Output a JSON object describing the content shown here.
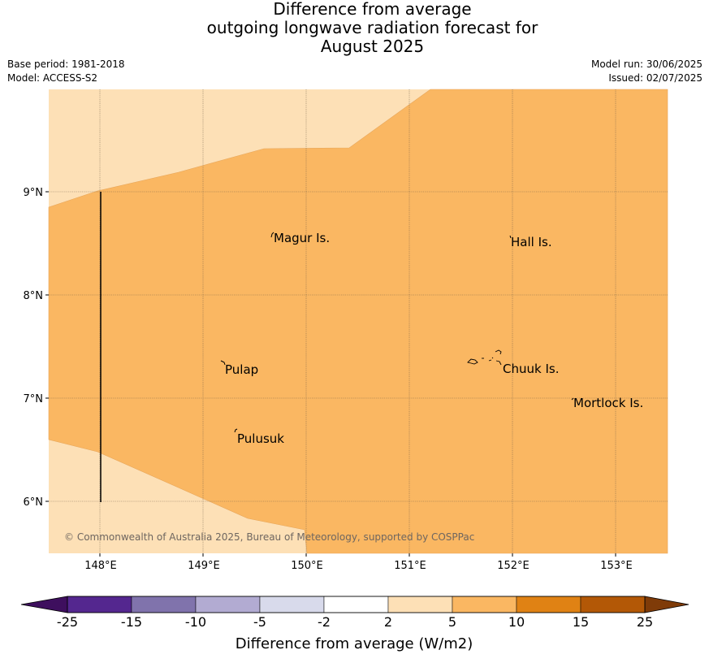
{
  "header": {
    "title_line1": "Difference from average",
    "title_line2": "outgoing longwave radiation forecast for",
    "title_line3": "August 2025",
    "base_period": "Base period: 1981-2018",
    "model": "Model: ACCESS-S2",
    "model_run": "Model run: 30/06/2025",
    "issued": "Issued: 02/07/2025"
  },
  "map": {
    "lat_ticks": [
      "9°N",
      "8°N",
      "7°N",
      "6°N"
    ],
    "lon_ticks": [
      "148°E",
      "149°E",
      "150°E",
      "151°E",
      "152°E",
      "153°E"
    ],
    "places": {
      "magur": "Magur Is.",
      "hall": "Hall Is.",
      "pulap": "Pulap",
      "chuuk": "Chuuk Is.",
      "mortlock": "Mortlock Is.",
      "pulusuk": "Pulusuk"
    },
    "copyright": "© Commonwealth of Australia 2025, Bureau of Meteorology, supported by COSPPac",
    "colors": {
      "light": "#fde0b6",
      "mid": "#fab762"
    }
  },
  "colorbar": {
    "labels": [
      "-25",
      "-15",
      "-10",
      "-5",
      "-2",
      "2",
      "5",
      "10",
      "15",
      "25"
    ],
    "colors": [
      "#3e0f5e",
      "#54278f",
      "#8073ac",
      "#b2abd2",
      "#d8daeb",
      "#ffffff",
      "#fde0b6",
      "#fab762",
      "#e08214",
      "#b35806",
      "#7f3b08"
    ],
    "title": "Difference from average (W/m2)"
  }
}
